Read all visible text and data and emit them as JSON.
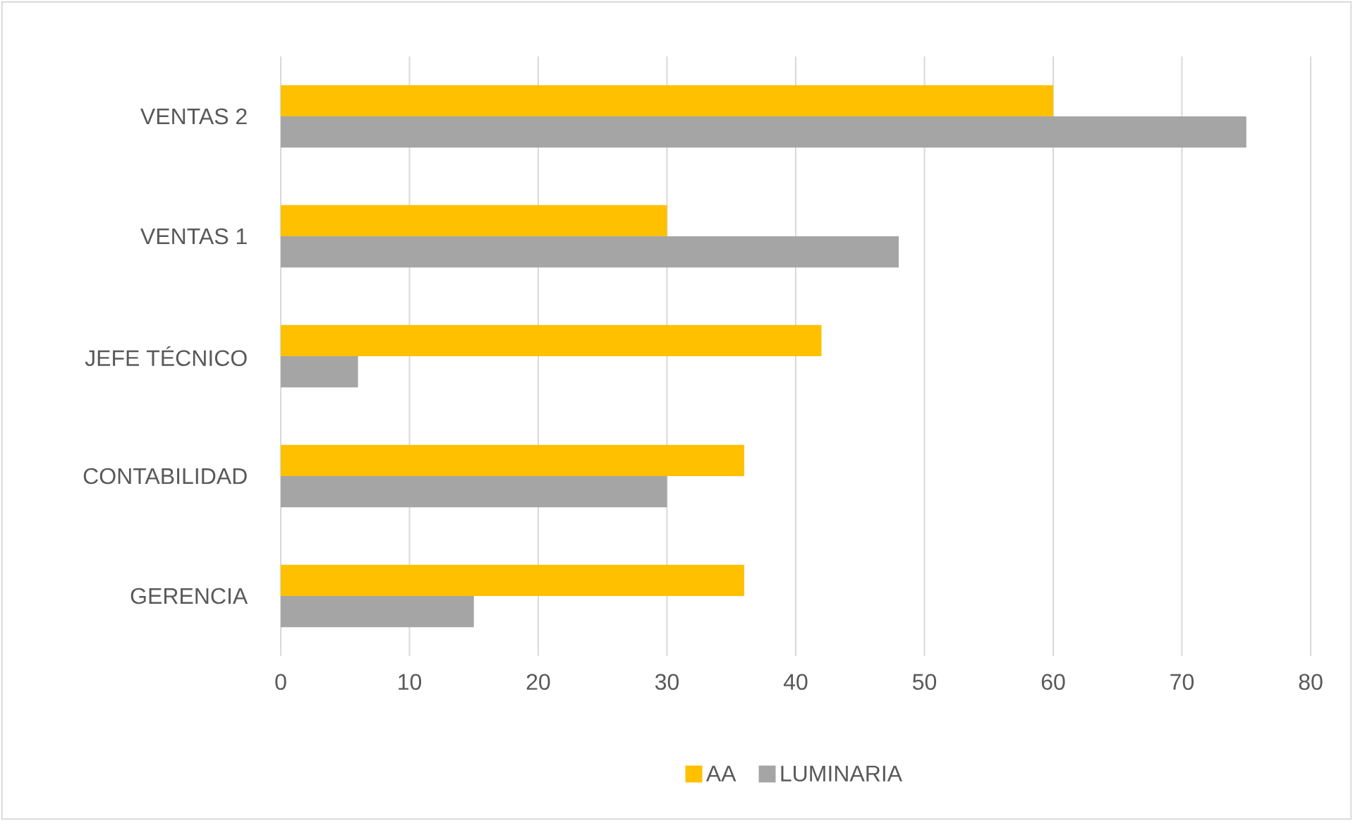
{
  "chart_data": {
    "type": "bar",
    "orientation": "horizontal",
    "categories": [
      "VENTAS 2",
      "VENTAS 1",
      "JEFE TÉCNICO",
      "CONTABILIDAD",
      "GERENCIA"
    ],
    "series": [
      {
        "name": "AA",
        "color": "#ffc000",
        "values": [
          60,
          30,
          42,
          36,
          36
        ]
      },
      {
        "name": "LUMINARIA",
        "color": "#a5a5a5",
        "values": [
          75,
          48,
          6,
          30,
          15
        ]
      }
    ],
    "xlim": [
      0,
      80
    ],
    "xticks": [
      0,
      10,
      20,
      30,
      40,
      50,
      60,
      70,
      80
    ],
    "grid": "x",
    "legend": "bottom"
  }
}
